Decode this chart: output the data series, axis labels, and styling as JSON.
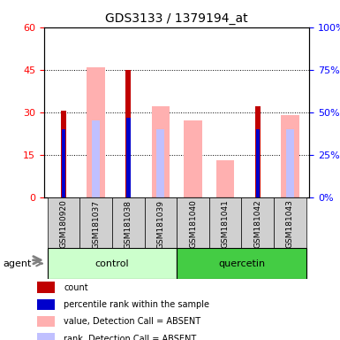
{
  "title": "GDS3133 / 1379194_at",
  "samples": [
    "GSM180920",
    "GSM181037",
    "GSM181038",
    "GSM181039",
    "GSM181040",
    "GSM181041",
    "GSM181042",
    "GSM181043"
  ],
  "groups": [
    "control",
    "control",
    "control",
    "control",
    "quercetin",
    "quercetin",
    "quercetin",
    "quercetin"
  ],
  "count_values": [
    30.5,
    0,
    45,
    0,
    0,
    0,
    32,
    0
  ],
  "percentile_values": [
    24,
    0,
    28,
    0,
    0,
    0,
    24,
    0
  ],
  "absent_value_values": [
    0,
    46,
    0,
    32,
    27,
    13,
    0,
    29
  ],
  "absent_rank_values": [
    0,
    27,
    0,
    24,
    0,
    0,
    0,
    24
  ],
  "ylim_left": [
    0,
    60
  ],
  "ylim_right": [
    0,
    100
  ],
  "yticks_left": [
    0,
    15,
    30,
    45,
    60
  ],
  "ytick_labels_left": [
    "0",
    "15",
    "30",
    "45",
    "60"
  ],
  "yticks_right": [
    0,
    25,
    50,
    75,
    100
  ],
  "ytick_labels_right": [
    "0%",
    "25%",
    "50%",
    "75%",
    "100%"
  ],
  "color_count": "#c00000",
  "color_percentile": "#0000cc",
  "color_absent_value": "#ffb0b0",
  "color_absent_rank": "#c0c0ff",
  "color_control_bg": "#ccffcc",
  "color_quercetin_bg": "#44cc44",
  "color_sample_bg": "#d0d0d0",
  "bar_width": 0.35,
  "legend_labels": [
    "count",
    "percentile rank within the sample",
    "value, Detection Call = ABSENT",
    "rank, Detection Call = ABSENT"
  ],
  "agent_label": "agent",
  "group_control_label": "control",
  "group_quercetin_label": "quercetin"
}
